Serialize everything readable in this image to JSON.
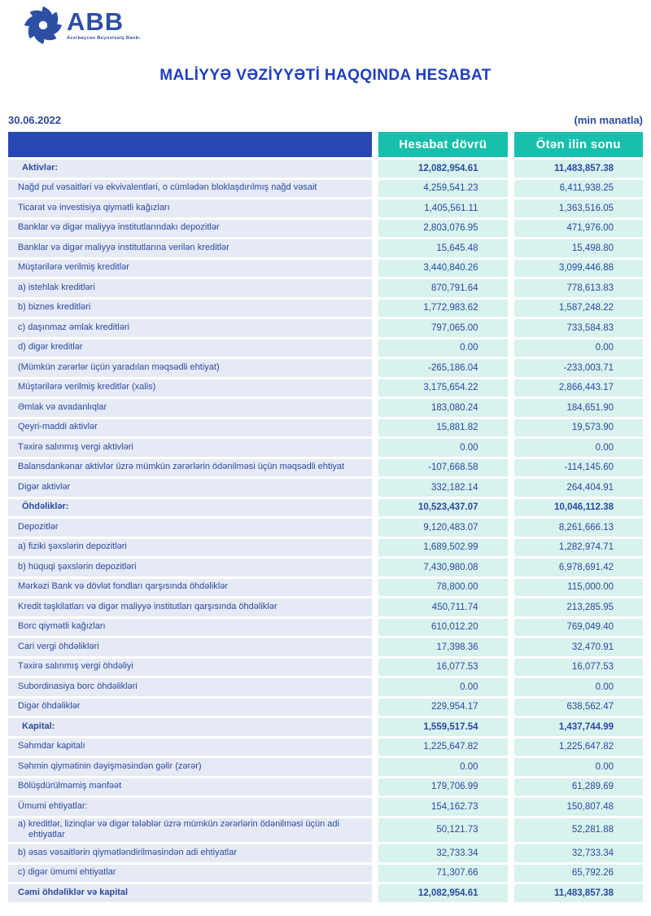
{
  "logo": {
    "text": "ABB",
    "subtext": "Azərbaycan Beynəlxalq Bankı"
  },
  "title": "MALİYYƏ VƏZİYYƏTİ HAQQINDA HESABAT",
  "date": "30.06.2022",
  "unit_note": "(min manatla)",
  "colors": {
    "header_blue": "#2847b2",
    "header_teal": "#17bfac",
    "label_cell_bg": "#e6eaf5",
    "value_cell_bg": "#d8f2ee",
    "text_blue": "#2b4a9f",
    "title_blue": "#1e3ec2",
    "logo_blue": "#2d4fa3"
  },
  "table": {
    "columns": [
      "Hesabat dövrü",
      "Ötən ilin sonu"
    ],
    "rows": [
      {
        "label": "Aktivlər:",
        "current": "12,082,954.61",
        "previous": "11,483,857.38",
        "bold": true,
        "section": true
      },
      {
        "label": "Nağd pul vəsaitləri və  ekvivalentləri, o cümlədən bloklaşdırılmış nağd vəsait",
        "current": "4,259,541.23",
        "previous": "6,411,938.25",
        "bold": false,
        "section": false
      },
      {
        "label": "Ticarət və investisiya qiymətli kağızları",
        "current": "1,405,561.11",
        "previous": "1,363,516.05",
        "bold": false,
        "section": false
      },
      {
        "label": "Banklar və digər maliyyə institutlarındakı depozitlər",
        "current": "2,803,076.95",
        "previous": "471,976.00",
        "bold": false,
        "section": false
      },
      {
        "label": "Banklar və digər maliyyə institutlarına verilən kreditlər",
        "current": "15,645.48",
        "previous": "15,498.80",
        "bold": false,
        "section": false
      },
      {
        "label": "Müştərilərə verilmiş kreditlər",
        "current": "3,440,840.26",
        "previous": "3,099,446.88",
        "bold": false,
        "section": false
      },
      {
        "label": "a) istehlak kreditləri",
        "current": "870,791.64",
        "previous": "778,613.83",
        "bold": false,
        "section": false
      },
      {
        "label": "b) biznes kreditləri",
        "current": "1,772,983.62",
        "previous": "1,587,248.22",
        "bold": false,
        "section": false
      },
      {
        "label": "c) daşınmaz əmlak kreditləri",
        "current": "797,065.00",
        "previous": "733,584.83",
        "bold": false,
        "section": false
      },
      {
        "label": "d) digər kreditlər",
        "current": "0.00",
        "previous": "0.00",
        "bold": false,
        "section": false
      },
      {
        "label": "(Mümkün zərərlər üçün yaradılan məqsədli ehtiyat)",
        "current": "-265,186.04",
        "previous": "-233,003.71",
        "bold": false,
        "section": false
      },
      {
        "label": "Müştərilərə verilmiş kreditlər (xalis)",
        "current": "3,175,654.22",
        "previous": "2,866,443.17",
        "bold": false,
        "section": false
      },
      {
        "label": "Əmlak və avadanlıqlar",
        "current": "183,080.24",
        "previous": "184,651.90",
        "bold": false,
        "section": false
      },
      {
        "label": "Qeyri-maddi aktivlər",
        "current": "15,881.82",
        "previous": "19,573.90",
        "bold": false,
        "section": false
      },
      {
        "label": "Təxirə salınmış vergi aktivləri",
        "current": "0.00",
        "previous": "0.00",
        "bold": false,
        "section": false
      },
      {
        "label": "Balansdankənar aktivlər üzrə mümkün zərərlərin ödənilməsi üçün məqsədli ehtiyat",
        "current": "-107,668.58",
        "previous": "-114,145.60",
        "bold": false,
        "section": false
      },
      {
        "label": "Digər aktivlər",
        "current": "332,182.14",
        "previous": "264,404.91",
        "bold": false,
        "section": false
      },
      {
        "label": "Öhdəliklər:",
        "current": "10,523,437.07",
        "previous": "10,046,112.38",
        "bold": true,
        "section": true
      },
      {
        "label": "Depozitlər",
        "current": "9,120,483.07",
        "previous": "8,261,666.13",
        "bold": false,
        "section": false
      },
      {
        "label": "a) fiziki şəxslərin depozitləri",
        "current": "1,689,502.99",
        "previous": "1,282,974.71",
        "bold": false,
        "section": false
      },
      {
        "label": "b) hüquqi şəxslərin depozitləri",
        "current": "7,430,980.08",
        "previous": "6,978,691.42",
        "bold": false,
        "section": false
      },
      {
        "label": "Mərkəzi Bank və dövlət fondları qarşısında öhdəliklər",
        "current": "78,800.00",
        "previous": "115,000.00",
        "bold": false,
        "section": false
      },
      {
        "label": "Kredit təşkilatları və digər maliyyə institutları qarşısında öhdəliklər",
        "current": "450,711.74",
        "previous": "213,285.95",
        "bold": false,
        "section": false
      },
      {
        "label": "Borc qiymətli kağızları",
        "current": "610,012.20",
        "previous": "769,049.40",
        "bold": false,
        "section": false
      },
      {
        "label": "Cari vergi öhdəlikləri",
        "current": "17,398.36",
        "previous": "32,470.91",
        "bold": false,
        "section": false
      },
      {
        "label": "Təxirə salınmış vergi öhdəliyi",
        "current": "16,077.53",
        "previous": "16,077.53",
        "bold": false,
        "section": false
      },
      {
        "label": "Subordinasiya borc öhdəlikləri",
        "current": "0.00",
        "previous": "0.00",
        "bold": false,
        "section": false
      },
      {
        "label": "Digər öhdəliklər",
        "current": "229,954.17",
        "previous": "638,562.47",
        "bold": false,
        "section": false
      },
      {
        "label": "Kapital:",
        "current": "1,559,517.54",
        "previous": "1,437,744.99",
        "bold": true,
        "section": true
      },
      {
        "label": "Səhmdar kapitalı",
        "current": "1,225,647.82",
        "previous": "1,225,647.82",
        "bold": false,
        "section": false
      },
      {
        "label": "Səhmin qiymətinin dəyişməsindən gəlir (zərər)",
        "current": "0.00",
        "previous": "0.00",
        "bold": false,
        "section": false
      },
      {
        "label": "Bölüşdürülməmiş mənfəət",
        "current": "179,706.99",
        "previous": "61,289.69",
        "bold": false,
        "section": false
      },
      {
        "label": "Ümumi ehtiyatlar:",
        "current": "154,162.73",
        "previous": "150,807.48",
        "bold": false,
        "section": false
      },
      {
        "label": "a) kreditlər, lizinqlər və digər tələblər üzrə mümkün zərərlərin ödənilməsi üçün adi ehtiyatlar",
        "current": "50,121.73",
        "previous": "52,281.88",
        "bold": false,
        "section": false
      },
      {
        "label": "b) əsas vəsaitlərin qiymətləndirilməsindən adi ehtiyatlar",
        "current": "32,733.34",
        "previous": "32,733.34",
        "bold": false,
        "section": false
      },
      {
        "label": "c) digər ümumi ehtiyatlar",
        "current": "71,307.66",
        "previous": "65,792.26",
        "bold": false,
        "section": false
      },
      {
        "label": "Cəmi öhdəliklər və kapital",
        "current": "12,082,954.61",
        "previous": "11,483,857.38",
        "bold": true,
        "section": false
      }
    ]
  }
}
